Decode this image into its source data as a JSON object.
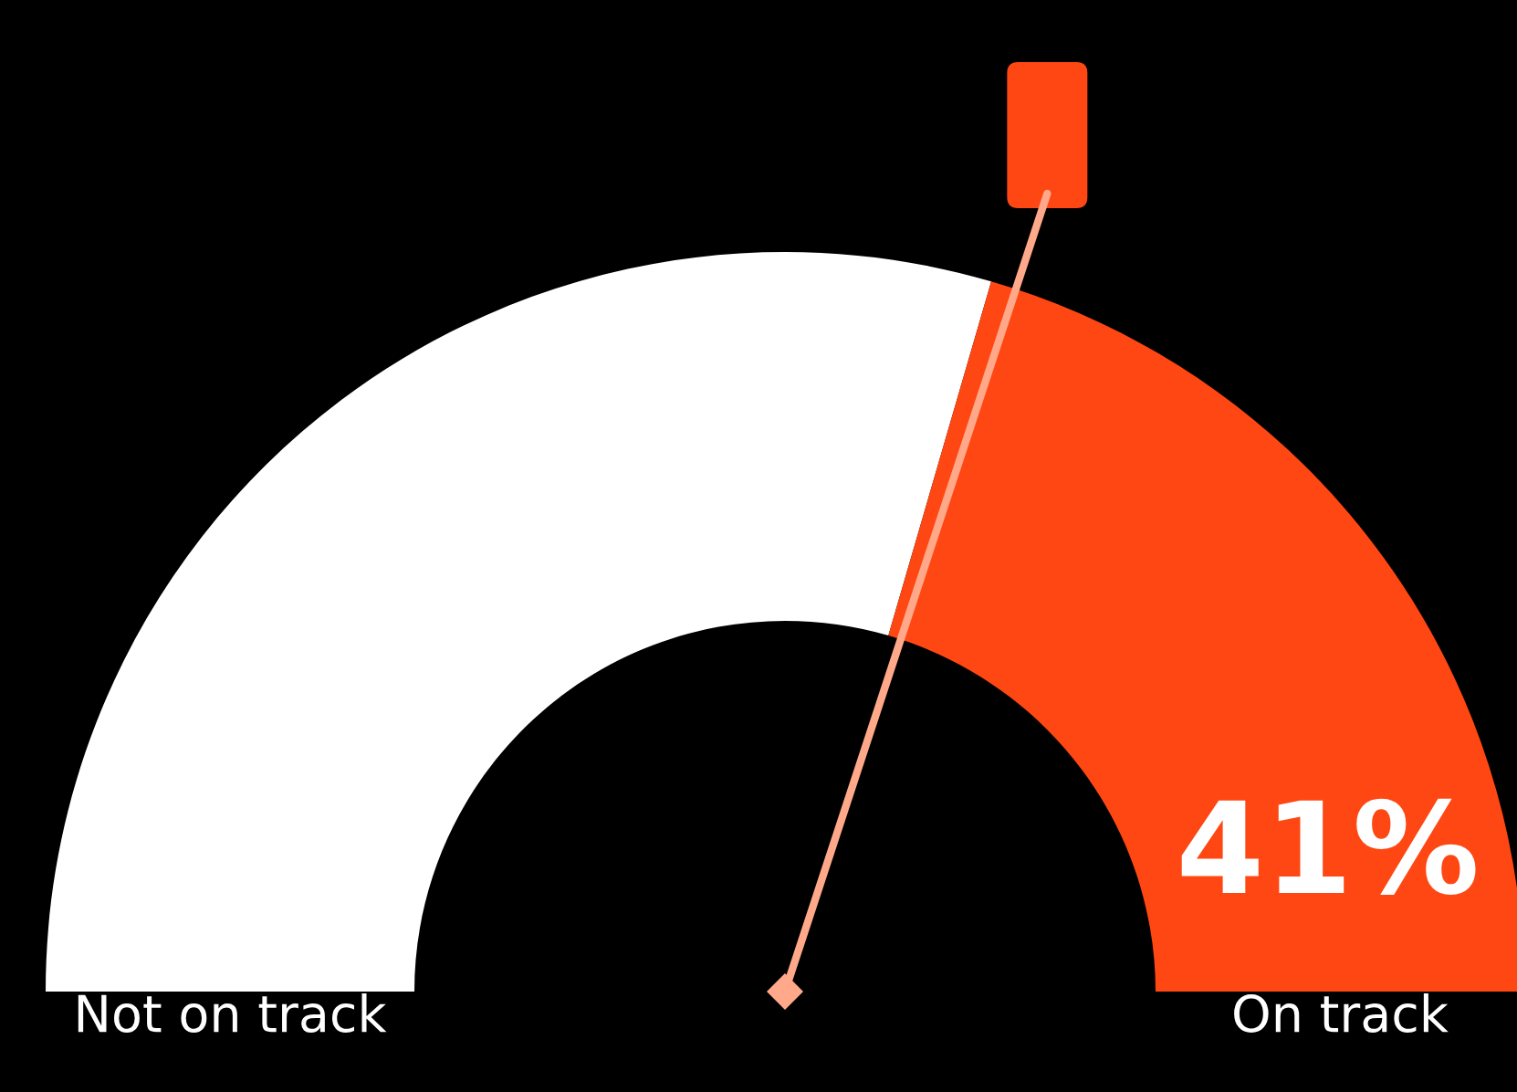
{
  "chart_data": {
    "type": "donut",
    "categories": [
      "Not on track",
      "On track"
    ],
    "values": [
      59,
      41
    ],
    "colors": [
      "#ffffff",
      "#ff4713"
    ],
    "value_labels": [
      null,
      "41%"
    ],
    "needle": "On track"
  }
}
